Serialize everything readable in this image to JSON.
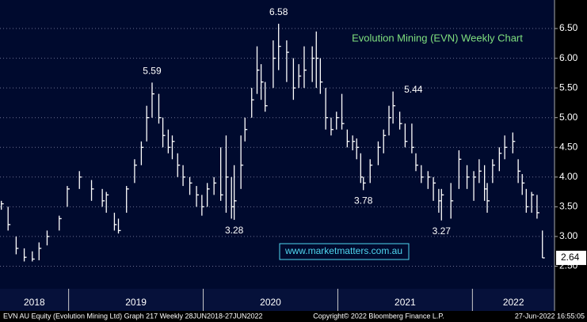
{
  "chart_data": {
    "type": "ohlc",
    "title": "Evolution Mining (EVN) Weekly Chart",
    "watermark": "www.marketmatters.com.au",
    "color": "#ffffff",
    "x": [
      2018.5,
      2018.55,
      2018.61,
      2018.67,
      2018.73,
      2018.78,
      2018.84,
      2018.93,
      2018.99,
      2019.08,
      2019.17,
      2019.25,
      2019.28,
      2019.34,
      2019.37,
      2019.43,
      2019.49,
      2019.54,
      2019.58,
      2019.62,
      2019.67,
      2019.7,
      2019.74,
      2019.77,
      2019.81,
      2019.85,
      2019.9,
      2019.95,
      2019.99,
      2020.03,
      2020.08,
      2020.13,
      2020.17,
      2020.21,
      2020.23,
      2020.28,
      2020.31,
      2020.36,
      2020.4,
      2020.43,
      2020.46,
      2020.52,
      2020.56,
      2020.62,
      2020.67,
      2020.71,
      2020.75,
      2020.81,
      2020.84,
      2020.87,
      2020.91,
      2020.95,
      2020.99,
      2021.03,
      2021.07,
      2021.11,
      2021.14,
      2021.17,
      2021.19,
      2021.24,
      2021.3,
      2021.34,
      2021.38,
      2021.41,
      2021.46,
      2021.5,
      2021.55,
      2021.58,
      2021.62,
      2021.67,
      2021.71,
      2021.75,
      2021.77,
      2021.84,
      2021.9,
      2021.96,
      2022.01,
      2022.05,
      2022.09,
      2022.11,
      2022.15,
      2022.2,
      2022.24,
      2022.3,
      2022.34,
      2022.37,
      2022.4,
      2022.44,
      2022.48,
      2022.52
    ],
    "high": [
      3.6,
      3.5,
      3.0,
      2.8,
      2.75,
      2.9,
      3.1,
      3.35,
      3.85,
      4.1,
      3.95,
      3.8,
      3.75,
      3.4,
      3.3,
      3.85,
      4.3,
      4.6,
      5.2,
      5.59,
      5.4,
      5.0,
      4.8,
      4.7,
      4.4,
      4.2,
      4.0,
      3.85,
      3.7,
      3.9,
      4.0,
      4.5,
      4.7,
      4.0,
      4.2,
      4.7,
      5.0,
      5.5,
      6.2,
      5.9,
      5.6,
      6.3,
      6.58,
      6.3,
      6.0,
      5.9,
      6.2,
      6.2,
      6.45,
      6.0,
      5.5,
      5.0,
      5.1,
      5.4,
      4.8,
      4.7,
      4.65,
      4.4,
      4.0,
      4.3,
      4.6,
      4.8,
      5.2,
      5.44,
      5.1,
      4.9,
      4.9,
      4.4,
      4.2,
      4.1,
      4.0,
      3.8,
      3.8,
      3.9,
      4.45,
      4.2,
      4.1,
      4.3,
      4.2,
      3.9,
      4.3,
      4.5,
      4.7,
      4.75,
      4.3,
      4.05,
      3.8,
      3.75,
      3.7,
      3.1
    ],
    "low": [
      3.45,
      3.1,
      2.7,
      2.58,
      2.58,
      2.6,
      2.85,
      3.1,
      3.5,
      3.8,
      3.6,
      3.5,
      3.4,
      3.1,
      3.05,
      3.4,
      3.9,
      4.2,
      4.6,
      5.0,
      4.9,
      4.5,
      4.4,
      4.3,
      4.0,
      3.85,
      3.7,
      3.5,
      3.35,
      3.5,
      3.7,
      3.6,
      3.4,
      3.3,
      3.28,
      3.8,
      4.6,
      5.0,
      5.4,
      5.3,
      5.1,
      5.5,
      5.8,
      5.6,
      5.3,
      5.5,
      5.5,
      5.6,
      5.5,
      5.4,
      4.8,
      4.7,
      4.8,
      4.8,
      4.5,
      4.45,
      4.3,
      3.9,
      3.78,
      3.9,
      4.2,
      4.4,
      4.7,
      4.9,
      4.8,
      4.5,
      4.4,
      4.1,
      3.9,
      3.8,
      3.6,
      3.4,
      3.27,
      3.3,
      3.8,
      3.8,
      3.6,
      3.9,
      3.6,
      3.4,
      3.9,
      4.1,
      4.3,
      4.4,
      3.9,
      3.7,
      3.4,
      3.4,
      3.3,
      2.64
    ],
    "close": [
      3.55,
      3.2,
      2.8,
      2.65,
      2.62,
      2.8,
      3.0,
      3.3,
      3.8,
      4.0,
      3.8,
      3.6,
      3.7,
      3.2,
      3.1,
      3.8,
      4.2,
      4.5,
      5.0,
      5.4,
      5.0,
      4.7,
      4.5,
      4.6,
      4.2,
      4.0,
      3.9,
      3.7,
      3.5,
      3.8,
      3.9,
      3.7,
      4.0,
      3.5,
      3.6,
      4.2,
      4.8,
      5.3,
      5.8,
      5.6,
      5.2,
      6.0,
      6.2,
      6.1,
      5.5,
      5.7,
      5.8,
      6.0,
      6.0,
      5.6,
      5.0,
      4.8,
      5.0,
      4.9,
      4.6,
      4.6,
      4.5,
      4.0,
      3.9,
      4.2,
      4.5,
      4.7,
      5.0,
      5.2,
      4.9,
      4.6,
      4.5,
      4.2,
      4.0,
      4.0,
      3.9,
      3.6,
      3.7,
      3.6,
      4.3,
      4.0,
      4.0,
      4.1,
      3.8,
      3.6,
      4.2,
      4.4,
      4.5,
      4.6,
      4.1,
      3.9,
      3.5,
      3.7,
      3.4,
      2.64
    ],
    "annotations": [
      {
        "x": 2019.62,
        "value": 5.59,
        "position": "above"
      },
      {
        "x": 2020.56,
        "value": 6.58,
        "position": "above"
      },
      {
        "x": 2021.41,
        "value": 5.44,
        "position": "right"
      },
      {
        "x": 2020.23,
        "value": 3.28,
        "position": "below"
      },
      {
        "x": 2021.19,
        "value": 3.78,
        "position": "below"
      },
      {
        "x": 2021.77,
        "value": 3.27,
        "position": "below"
      }
    ],
    "last_price": 2.64,
    "xlim": [
      2018.49,
      2022.61
    ],
    "xticks": [
      2019,
      2020,
      2021,
      2022
    ],
    "year_labels": [
      "2018",
      "2019",
      "2020",
      "2021",
      "2022"
    ],
    "ylim": [
      2.12,
      6.98
    ],
    "yticks": [
      {
        "value": 2.5,
        "label": "2.50"
      },
      {
        "value": 3,
        "label": "3.00"
      },
      {
        "value": 3.5,
        "label": "3.50"
      },
      {
        "value": 4,
        "label": "4.00"
      },
      {
        "value": 4.5,
        "label": "4.50"
      },
      {
        "value": 5,
        "label": "5.00"
      },
      {
        "value": 5.5,
        "label": "5.50"
      },
      {
        "value": 6,
        "label": "6.00"
      },
      {
        "value": 6.5,
        "label": "6.50"
      }
    ],
    "grid": true,
    "footer": {
      "left": "EVN AU Equity (Evolution Mining Ltd) Graph 217  Weekly 28JUN2018-27JUN2022",
      "center": "Copyright© 2022 Bloomberg Finance L.P.",
      "right": "27-Jun-2022 16:55:05"
    }
  }
}
